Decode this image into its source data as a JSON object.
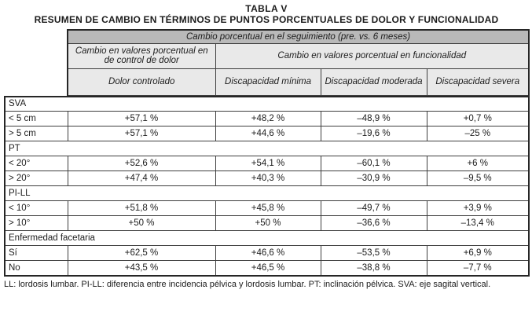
{
  "title": {
    "line1": "TABLA V",
    "line2": "RESUMEN DE CAMBIO EN TÉRMINOS DE PUNTOS PORCENTUALES DE DOLOR Y FUNCIONALIDAD"
  },
  "header": {
    "top": "Cambio porcentual en el seguimiento (pre. vs. 6 meses)",
    "group_dolor": "Cambio en valores porcentual en de control de dolor",
    "group_funcionalidad": "Cambio en valores porcentual en  funcionalidad",
    "col_dolor": "Dolor controlado",
    "col_minima": "Discapacidad mínima",
    "col_moderada": "Discapacidad moderada",
    "col_severa": "Discapacidad severa"
  },
  "rows": [
    {
      "type": "section",
      "label": "SVA"
    },
    {
      "type": "data",
      "label": "< 5 cm",
      "values": [
        "+57,1 %",
        "+48,2 %",
        "–48,9 %",
        "+0,7 %"
      ]
    },
    {
      "type": "data",
      "label": "> 5 cm",
      "values": [
        "+57,1 %",
        "+44,6 %",
        "–19,6 %",
        "–25 %"
      ]
    },
    {
      "type": "section",
      "label": "PT"
    },
    {
      "type": "data",
      "label": "< 20°",
      "values": [
        "+52,6 %",
        "+54,1 %",
        "–60,1 %",
        "+6 %"
      ]
    },
    {
      "type": "data",
      "label": "> 20°",
      "values": [
        "+47,4 %",
        "+40,3 %",
        "–30,9 %",
        "–9,5 %"
      ]
    },
    {
      "type": "section",
      "label": "PI-LL"
    },
    {
      "type": "data",
      "label": "< 10°",
      "values": [
        "+51,8 %",
        "+45,8 %",
        "–49,7 %",
        "+3,9 %"
      ]
    },
    {
      "type": "data",
      "label": "> 10°",
      "values": [
        "+50 %",
        "+50 %",
        "–36,6 %",
        "–13,4 %"
      ]
    },
    {
      "type": "section",
      "label": "Enfermedad facetaria"
    },
    {
      "type": "data",
      "label": "Sí",
      "values": [
        "+62,5 %",
        "+46,6 %",
        "–53,5 %",
        "+6,9 %"
      ]
    },
    {
      "type": "data",
      "label": "No",
      "values": [
        "+43,5 %",
        "+46,5 %",
        "–38,8 %",
        "–7,7 %"
      ]
    }
  ],
  "footnote": "LL: lordosis lumbar. PI-LL: diferencia entre incidencia pélvica y lordosis lumbar. PT: inclinación pélvica. SVA: eje sagital vertical.",
  "colors": {
    "header_dark": "#b9b9b9",
    "header_light": "#e9e9e9",
    "border": "#3e3e3e",
    "outer_border": "#262626"
  }
}
